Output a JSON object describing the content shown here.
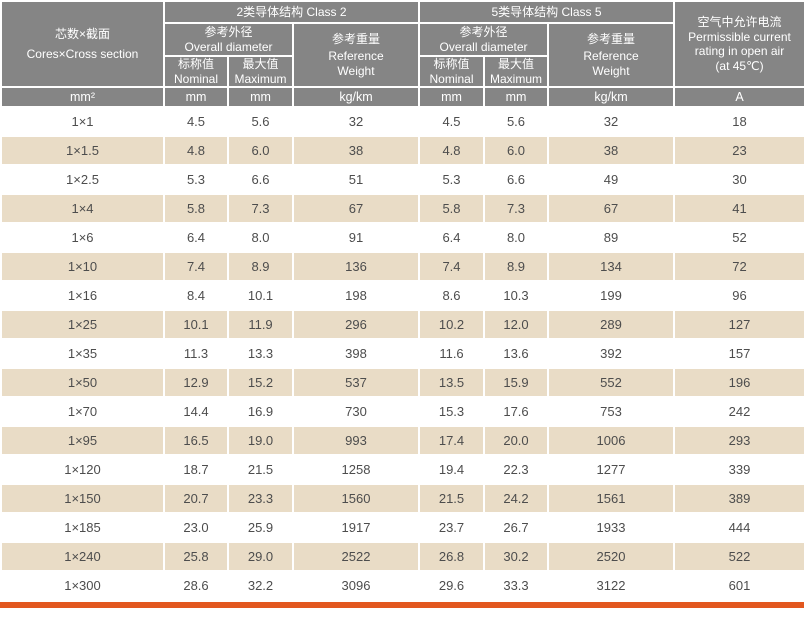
{
  "colors": {
    "header_bg": "#858585",
    "header_text": "#ffffff",
    "row_alt_bg": "#e9dcc6",
    "row_bg": "#ffffff",
    "data_text": "#4d4d4d",
    "accent_bar": "#e2571f"
  },
  "table": {
    "header": {
      "cores": {
        "zh": "芯数×截面",
        "en": "Cores×Cross section"
      },
      "class2": "2类导体结构 Class 2",
      "class5": "5类导体结构  Class 5",
      "overall_diameter": {
        "zh": "参考外径",
        "en": "Overall diameter"
      },
      "reference_weight": {
        "zh": "参考重量",
        "en_line1": "Reference",
        "en_line2": "Weight"
      },
      "nominal": {
        "zh": "标称值",
        "en": "Nominal"
      },
      "maximum": {
        "zh": "最大值",
        "en": "Maximum"
      },
      "current": {
        "zh": "空气中允许电流",
        "en_line1": "Permissible current",
        "en_line2": "rating in open air",
        "en_line3": "(at 45℃)"
      }
    },
    "units": [
      "mm²",
      "mm",
      "mm",
      "kg/km",
      "mm",
      "mm",
      "kg/km",
      "A"
    ],
    "column_keys": [
      "size",
      "class2-nominal",
      "class2-maximum",
      "class2-weight",
      "class5-nominal",
      "class5-maximum",
      "class5-weight",
      "current-rating"
    ],
    "rows": [
      [
        "1×1",
        "4.5",
        "5.6",
        "32",
        "4.5",
        "5.6",
        "32",
        "18"
      ],
      [
        "1×1.5",
        "4.8",
        "6.0",
        "38",
        "4.8",
        "6.0",
        "38",
        "23"
      ],
      [
        "1×2.5",
        "5.3",
        "6.6",
        "51",
        "5.3",
        "6.6",
        "49",
        "30"
      ],
      [
        "1×4",
        "5.8",
        "7.3",
        "67",
        "5.8",
        "7.3",
        "67",
        "41"
      ],
      [
        "1×6",
        "6.4",
        "8.0",
        "91",
        "6.4",
        "8.0",
        "89",
        "52"
      ],
      [
        "1×10",
        "7.4",
        "8.9",
        "136",
        "7.4",
        "8.9",
        "134",
        "72"
      ],
      [
        "1×16",
        "8.4",
        "10.1",
        "198",
        "8.6",
        "10.3",
        "199",
        "96"
      ],
      [
        "1×25",
        "10.1",
        "11.9",
        "296",
        "10.2",
        "12.0",
        "289",
        "127"
      ],
      [
        "1×35",
        "11.3",
        "13.3",
        "398",
        "11.6",
        "13.6",
        "392",
        "157"
      ],
      [
        "1×50",
        "12.9",
        "15.2",
        "537",
        "13.5",
        "15.9",
        "552",
        "196"
      ],
      [
        "1×70",
        "14.4",
        "16.9",
        "730",
        "15.3",
        "17.6",
        "753",
        "242"
      ],
      [
        "1×95",
        "16.5",
        "19.0",
        "993",
        "17.4",
        "20.0",
        "1006",
        "293"
      ],
      [
        "1×120",
        "18.7",
        "21.5",
        "1258",
        "19.4",
        "22.3",
        "1277",
        "339"
      ],
      [
        "1×150",
        "20.7",
        "23.3",
        "1560",
        "21.5",
        "24.2",
        "1561",
        "389"
      ],
      [
        "1×185",
        "23.0",
        "25.9",
        "1917",
        "23.7",
        "26.7",
        "1933",
        "444"
      ],
      [
        "1×240",
        "25.8",
        "29.0",
        "2522",
        "26.8",
        "30.2",
        "2520",
        "522"
      ],
      [
        "1×300",
        "28.6",
        "32.2",
        "3096",
        "29.6",
        "33.3",
        "3122",
        "601"
      ]
    ]
  }
}
